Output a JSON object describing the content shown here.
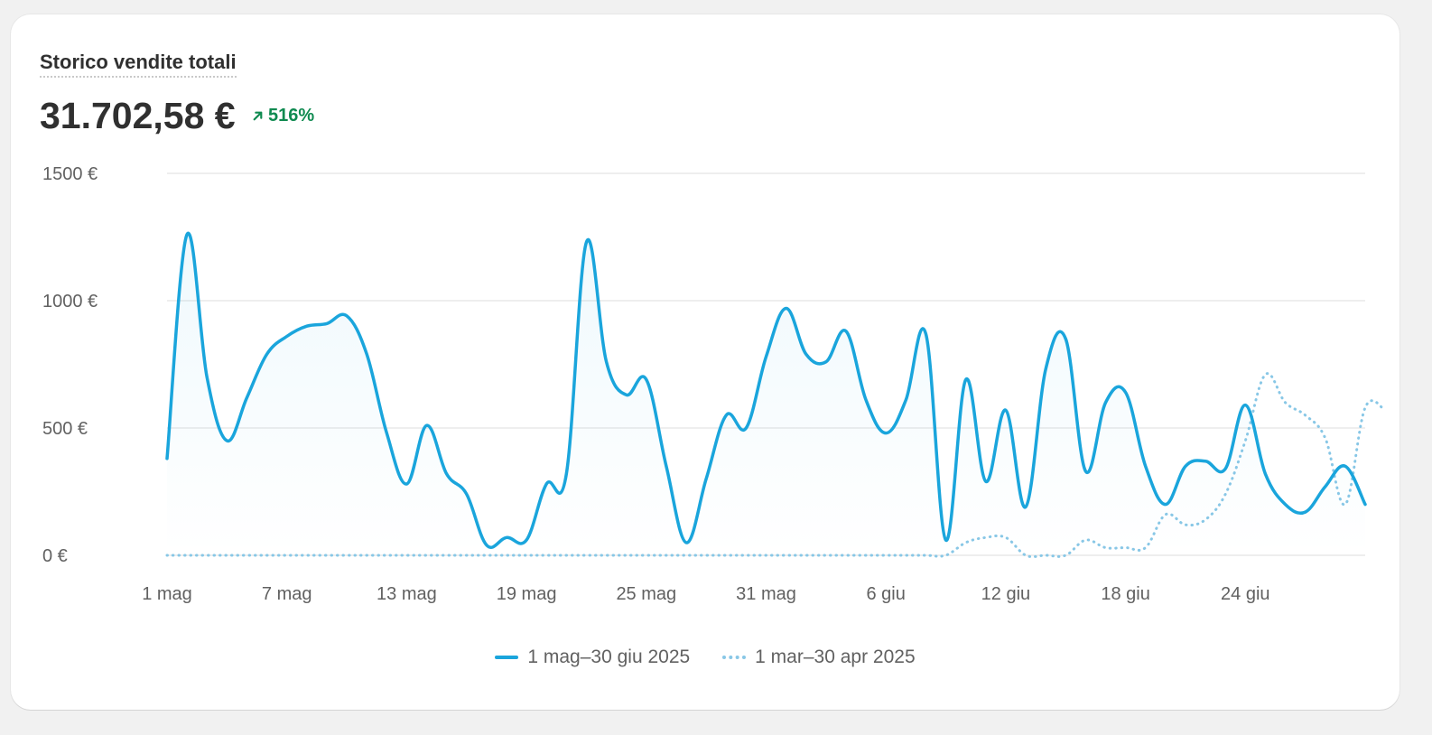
{
  "card": {
    "title": "Storico vendite totali",
    "total": "31.702,58 €",
    "change": "516%",
    "change_icon": "arrow-up-right-icon",
    "change_color": "#0f8a50"
  },
  "chart_data": {
    "type": "line",
    "title": "Storico vendite totali",
    "ylim": [
      0,
      1500
    ],
    "y_ticks": [
      {
        "value": 0,
        "label": "0 €"
      },
      {
        "value": 500,
        "label": "500 €"
      },
      {
        "value": 1000,
        "label": "1000 €"
      },
      {
        "value": 1500,
        "label": "1500 €"
      }
    ],
    "x_tick_labels": [
      {
        "day": 1,
        "label": "1 mag"
      },
      {
        "day": 7,
        "label": "7 mag"
      },
      {
        "day": 13,
        "label": "13 mag"
      },
      {
        "day": 19,
        "label": "19 mag"
      },
      {
        "day": 25,
        "label": "25 mag"
      },
      {
        "day": 31,
        "label": "31 mag"
      },
      {
        "day": 37,
        "label": "6 giu"
      },
      {
        "day": 43,
        "label": "12 giu"
      },
      {
        "day": 49,
        "label": "18 giu"
      },
      {
        "day": 55,
        "label": "24 giu"
      }
    ],
    "grid": true,
    "legend_position": "bottom",
    "series": [
      {
        "name": "1 mag–30 giu 2025",
        "style": "solid",
        "color": "#1aa5dc",
        "values": [
          380,
          1260,
          700,
          450,
          620,
          790,
          860,
          900,
          910,
          940,
          790,
          480,
          280,
          510,
          320,
          240,
          40,
          70,
          60,
          280,
          320,
          1230,
          760,
          630,
          690,
          350,
          50,
          300,
          550,
          500,
          780,
          970,
          790,
          760,
          880,
          610,
          480,
          610,
          870,
          60,
          690,
          290,
          570,
          190,
          730,
          850,
          330,
          600,
          640,
          350,
          200,
          350,
          370,
          340,
          590,
          320,
          200,
          170,
          270,
          350,
          200
        ]
      },
      {
        "name": "1 mar–30 apr 2025",
        "style": "dotted",
        "color": "#88c7e6",
        "values": [
          0,
          0,
          0,
          0,
          0,
          0,
          0,
          0,
          0,
          0,
          0,
          0,
          0,
          0,
          0,
          0,
          0,
          0,
          0,
          0,
          0,
          0,
          0,
          0,
          0,
          0,
          0,
          0,
          0,
          0,
          0,
          0,
          0,
          0,
          0,
          0,
          0,
          0,
          0,
          0,
          50,
          70,
          70,
          0,
          0,
          0,
          60,
          30,
          30,
          30,
          160,
          120,
          140,
          240,
          450,
          710,
          600,
          550,
          460,
          200,
          580,
          570
        ]
      }
    ]
  }
}
